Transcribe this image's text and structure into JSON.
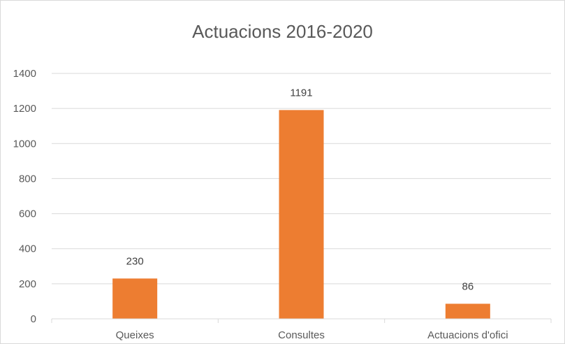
{
  "chart_data": {
    "type": "bar",
    "title": "Actuacions 2016-2020",
    "categories": [
      "Queixes",
      "Consultes",
      "Actuacions d'ofici"
    ],
    "values": [
      230,
      1191,
      86
    ],
    "data_labels": [
      "230",
      "1191",
      "86"
    ],
    "yticks": [
      "0",
      "200",
      "400",
      "600",
      "800",
      "1000",
      "1200",
      "1400"
    ],
    "ylim": [
      0,
      1400
    ],
    "xlabel": "",
    "ylabel": "",
    "grid": true,
    "legend": "none",
    "bar_color": "#ED7D31",
    "grid_color": "#D9D9D9",
    "text_color": "#595959"
  }
}
